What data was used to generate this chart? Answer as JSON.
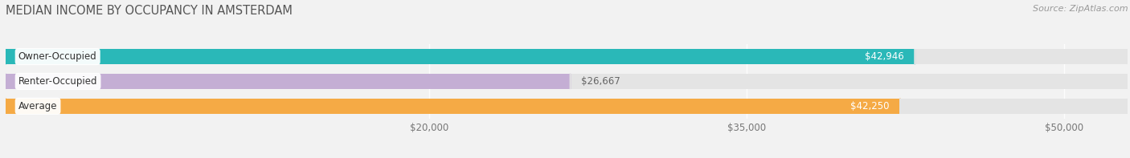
{
  "title": "MEDIAN INCOME BY OCCUPANCY IN AMSTERDAM",
  "source": "Source: ZipAtlas.com",
  "categories": [
    "Owner-Occupied",
    "Renter-Occupied",
    "Average"
  ],
  "values": [
    42946,
    26667,
    42250
  ],
  "bar_colors": [
    "#2ab8b8",
    "#c4aed4",
    "#f5aa45"
  ],
  "label_colors": [
    "#ffffff",
    "#666666",
    "#ffffff"
  ],
  "value_labels": [
    "$42,946",
    "$26,667",
    "$42,250"
  ],
  "x_ticks": [
    20000,
    35000,
    50000
  ],
  "x_tick_labels": [
    "$20,000",
    "$35,000",
    "$50,000"
  ],
  "x_min": 0,
  "x_max": 53000,
  "bar_height": 0.62,
  "background_color": "#f2f2f2",
  "bar_bg_color": "#e4e4e4",
  "title_fontsize": 10.5,
  "source_fontsize": 8,
  "label_fontsize": 8.5,
  "value_fontsize": 8.5,
  "tick_fontsize": 8.5
}
